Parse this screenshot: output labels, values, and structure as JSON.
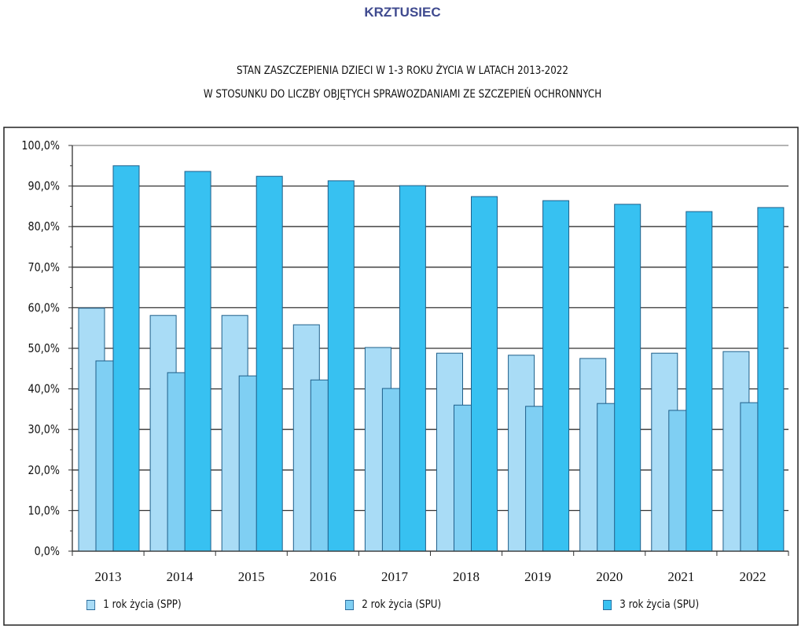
{
  "heading": "KRZTUSIEC",
  "chart_data": {
    "type": "bar",
    "title": [
      "STAN ZASZCZEPIENIA DZIECI W 1-3 ROKU ŻYCIA W LATACH 2013-2022",
      "W STOSUNKU DO LICZBY OBJĘTYCH SPRAWOZDANIAMI ZE SZCZEPIEŃ OCHRONNYCH"
    ],
    "categories": [
      "2013",
      "2014",
      "2015",
      "2016",
      "2017",
      "2018",
      "2019",
      "2020",
      "2021",
      "2022"
    ],
    "series": [
      {
        "name": "1 rok życia (SPP)",
        "color": "#a9dcf6",
        "values": [
          59.9,
          58.1,
          58.1,
          55.8,
          50.2,
          48.8,
          48.3,
          47.5,
          48.8,
          49.2
        ]
      },
      {
        "name": "2 rok życia (SPU)",
        "color": "#7fcff3",
        "values": [
          46.9,
          44.0,
          43.2,
          42.2,
          40.1,
          36.0,
          35.7,
          36.4,
          34.7,
          36.6
        ]
      },
      {
        "name": "3 rok życia (SPU)",
        "color": "#37c1f1",
        "values": [
          95.0,
          93.6,
          92.4,
          91.3,
          90.1,
          87.4,
          86.4,
          85.5,
          83.7,
          84.7
        ]
      }
    ],
    "yticks": [
      "0,0%",
      "10,0%",
      "20,0%",
      "30,0%",
      "40,0%",
      "50,0%",
      "60,0%",
      "70,0%",
      "80,0%",
      "90,0%",
      "100,0%"
    ],
    "ylim": [
      0,
      100
    ],
    "grid": true,
    "legend": "bottom"
  }
}
